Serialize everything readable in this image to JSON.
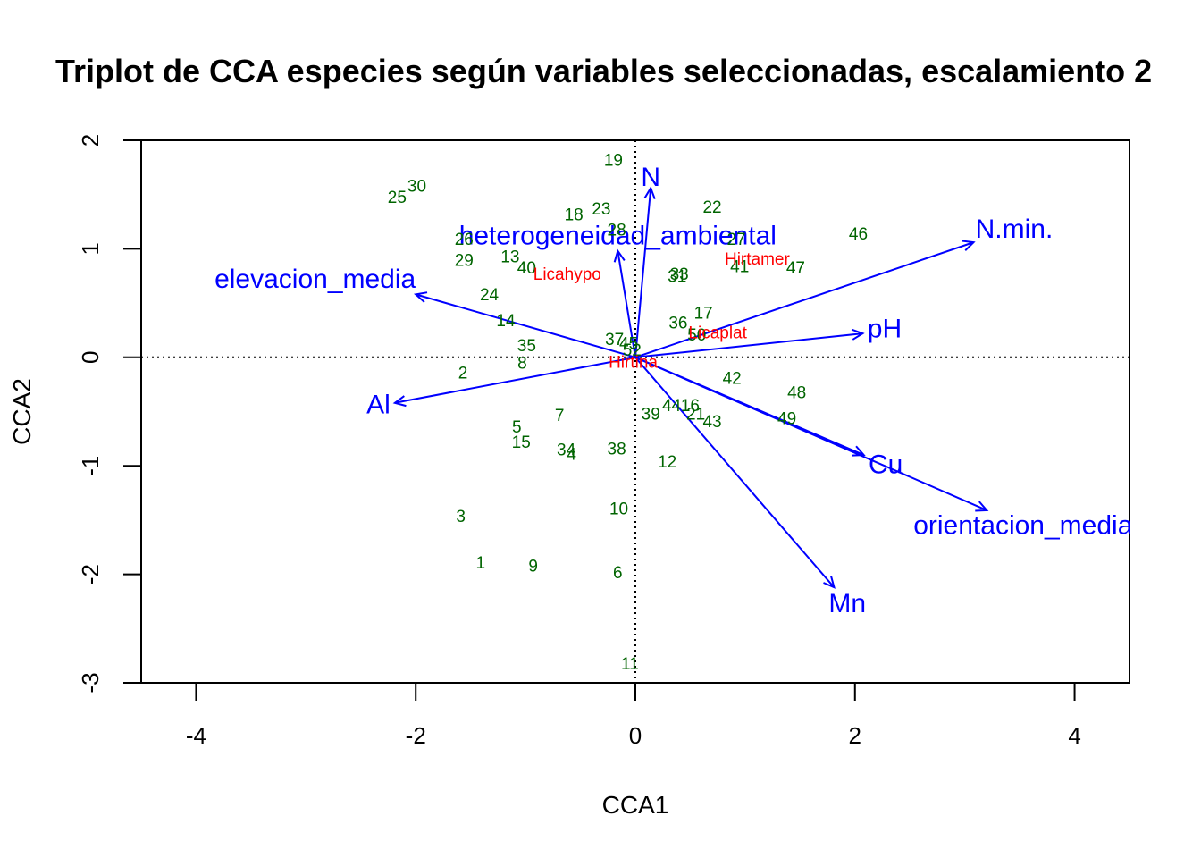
{
  "chart_data": {
    "type": "scatter",
    "title": "Triplot de CCA especies según variables seleccionadas, escalamiento 2",
    "xlabel": "CCA1",
    "ylabel": "CCA2",
    "xlim": [
      -4.5,
      4.5
    ],
    "ylim": [
      -3.0,
      2.0
    ],
    "xticks": [
      -4,
      -2,
      0,
      2,
      4
    ],
    "yticks": [
      -3,
      -2,
      -1,
      0,
      1,
      2
    ],
    "colors": {
      "sites": "#006400",
      "species": "#ff0000",
      "env": "#0000ff",
      "axes": "#000000"
    },
    "sites": [
      {
        "label": "1",
        "x": -1.41,
        "y": -1.9
      },
      {
        "label": "2",
        "x": -1.57,
        "y": -0.15
      },
      {
        "label": "3",
        "x": -1.59,
        "y": -1.47
      },
      {
        "label": "4",
        "x": -0.58,
        "y": -0.9
      },
      {
        "label": "5",
        "x": -1.08,
        "y": -0.65
      },
      {
        "label": "6",
        "x": -0.16,
        "y": -1.99
      },
      {
        "label": "7",
        "x": -0.69,
        "y": -0.54
      },
      {
        "label": "8",
        "x": -1.03,
        "y": -0.06
      },
      {
        "label": "9",
        "x": -0.93,
        "y": -1.93
      },
      {
        "label": "10",
        "x": -0.15,
        "y": -1.4
      },
      {
        "label": "11",
        "x": -0.05,
        "y": -2.83
      },
      {
        "label": "12",
        "x": 0.29,
        "y": -0.97
      },
      {
        "label": "13",
        "x": -1.14,
        "y": 0.92
      },
      {
        "label": "14",
        "x": -1.18,
        "y": 0.33
      },
      {
        "label": "15",
        "x": -1.04,
        "y": -0.79
      },
      {
        "label": "16",
        "x": 0.5,
        "y": -0.45
      },
      {
        "label": "17",
        "x": 0.62,
        "y": 0.4
      },
      {
        "label": "18",
        "x": -0.56,
        "y": 1.31
      },
      {
        "label": "19",
        "x": -0.2,
        "y": 1.81
      },
      {
        "label": "21",
        "x": 0.55,
        "y": -0.53
      },
      {
        "label": "22",
        "x": 0.7,
        "y": 1.38
      },
      {
        "label": "23",
        "x": -0.31,
        "y": 1.36
      },
      {
        "label": "24",
        "x": -1.33,
        "y": 0.57
      },
      {
        "label": "25",
        "x": -2.17,
        "y": 1.47
      },
      {
        "label": "26",
        "x": -1.56,
        "y": 1.08
      },
      {
        "label": "27",
        "x": 0.92,
        "y": 1.08
      },
      {
        "label": "28",
        "x": -0.17,
        "y": 1.17
      },
      {
        "label": "29",
        "x": -1.56,
        "y": 0.89
      },
      {
        "label": "30",
        "x": -1.99,
        "y": 1.57
      },
      {
        "label": "31",
        "x": 0.38,
        "y": 0.74
      },
      {
        "label": "33",
        "x": 0.4,
        "y": 0.76
      },
      {
        "label": "34",
        "x": -0.63,
        "y": -0.86
      },
      {
        "label": "35",
        "x": -0.99,
        "y": 0.1
      },
      {
        "label": "36",
        "x": 0.39,
        "y": 0.31
      },
      {
        "label": "37",
        "x": -0.19,
        "y": 0.16
      },
      {
        "label": "38",
        "x": -0.17,
        "y": -0.85
      },
      {
        "label": "39",
        "x": 0.14,
        "y": -0.53
      },
      {
        "label": "40",
        "x": -0.99,
        "y": 0.82
      },
      {
        "label": "41",
        "x": 0.95,
        "y": 0.83
      },
      {
        "label": "42",
        "x": 0.88,
        "y": -0.2
      },
      {
        "label": "43",
        "x": 0.7,
        "y": -0.6
      },
      {
        "label": "44",
        "x": 0.33,
        "y": -0.45
      },
      {
        "label": "45",
        "x": -0.06,
        "y": 0.12
      },
      {
        "label": "46",
        "x": 2.03,
        "y": 1.13
      },
      {
        "label": "47",
        "x": 1.46,
        "y": 0.82
      },
      {
        "label": "48",
        "x": 1.47,
        "y": -0.33
      },
      {
        "label": "49",
        "x": 1.38,
        "y": -0.57
      },
      {
        "label": "50",
        "x": 0.56,
        "y": 0.2
      },
      {
        "label": "52",
        "x": -0.03,
        "y": 0.06
      }
    ],
    "species": [
      {
        "label": "Licahypo",
        "x": -0.62,
        "y": 0.76
      },
      {
        "label": "Hirtamer",
        "x": 1.11,
        "y": 0.9
      },
      {
        "label": "Licaplat",
        "x": 0.75,
        "y": 0.22
      },
      {
        "label": "Hirtina",
        "x": -0.02,
        "y": -0.05
      }
    ],
    "env_vectors": [
      {
        "label": "N",
        "x": 0.14,
        "y": 1.56,
        "lx": 0.14,
        "ly": 1.66,
        "anchor": "middle"
      },
      {
        "label": "heterogeneidad_ambiental",
        "x": -0.16,
        "y": 0.98,
        "lx": -0.16,
        "ly": 1.12,
        "anchor": "middle"
      },
      {
        "label": "elevacion_media",
        "x": -2.0,
        "y": 0.58,
        "lx": -2.0,
        "ly": 0.72,
        "anchor": "end"
      },
      {
        "label": "Al",
        "x": -2.19,
        "y": -0.42,
        "lx": -2.34,
        "ly": -0.44,
        "anchor": "middle"
      },
      {
        "label": "N.min.",
        "x": 3.08,
        "y": 1.06,
        "lx": 3.45,
        "ly": 1.18,
        "anchor": "middle"
      },
      {
        "label": "pH",
        "x": 2.07,
        "y": 0.22,
        "lx": 2.27,
        "ly": 0.26,
        "anchor": "middle"
      },
      {
        "label": "Cu",
        "x": 2.08,
        "y": -0.9,
        "lx": 2.28,
        "ly": -0.99,
        "anchor": "middle"
      },
      {
        "label": "orientacion_media",
        "x": 3.2,
        "y": -1.41,
        "lx": 3.53,
        "ly": -1.55,
        "anchor": "middle"
      },
      {
        "label": "Mn",
        "x": 1.81,
        "y": -2.12,
        "lx": 1.93,
        "ly": -2.27,
        "anchor": "middle"
      }
    ]
  }
}
